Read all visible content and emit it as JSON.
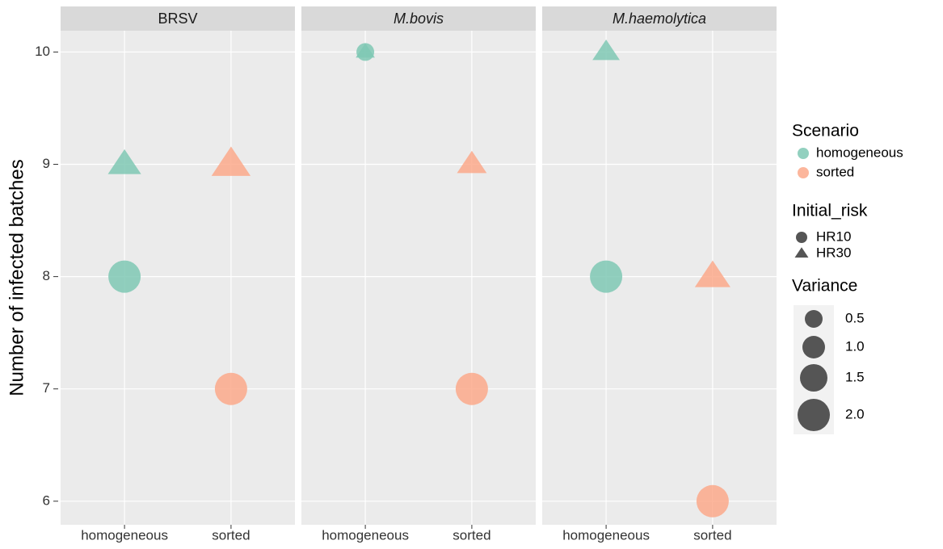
{
  "chart_data": {
    "type": "scatter",
    "y_label": "Number of infected batches",
    "categories": [
      "homogeneous",
      "sorted"
    ],
    "ylim": [
      5.79,
      10.19
    ],
    "yticks": [
      6,
      7,
      8,
      9,
      10
    ],
    "grid": true,
    "facets": [
      {
        "title": "BRSV",
        "italic": false,
        "points": [
          {
            "x": "homogeneous",
            "risk": "HR30",
            "value": 9,
            "variance": 1.5
          },
          {
            "x": "homogeneous",
            "risk": "HR10",
            "value": 8,
            "variance": 2.0
          },
          {
            "x": "sorted",
            "risk": "HR30",
            "value": 9,
            "variance": 2.0
          },
          {
            "x": "sorted",
            "risk": "HR10",
            "value": 7,
            "variance": 2.0
          }
        ]
      },
      {
        "title": "M.bovis",
        "italic": true,
        "points": [
          {
            "x": "homogeneous",
            "risk": "HR10",
            "value": 10,
            "variance": 0.5
          },
          {
            "x": "homogeneous",
            "risk": "HR30",
            "value": 10,
            "variance": 0.3
          },
          {
            "x": "sorted",
            "risk": "HR30",
            "value": 9,
            "variance": 1.2
          },
          {
            "x": "sorted",
            "risk": "HR10",
            "value": 7,
            "variance": 2.0
          }
        ]
      },
      {
        "title": "M.haemolytica",
        "italic": true,
        "points": [
          {
            "x": "homogeneous",
            "risk": "HR30",
            "value": 10,
            "variance": 1.0
          },
          {
            "x": "homogeneous",
            "risk": "HR10",
            "value": 8,
            "variance": 2.0
          },
          {
            "x": "sorted",
            "risk": "HR30",
            "value": 8,
            "variance": 1.7
          },
          {
            "x": "sorted",
            "risk": "HR10",
            "value": 6,
            "variance": 2.0
          }
        ]
      }
    ],
    "scenario_legend": {
      "title": "Scenario",
      "entries": [
        {
          "label": "homogeneous",
          "color": "#7fc8b4"
        },
        {
          "label": "sorted",
          "color": "#fca98b"
        }
      ]
    },
    "risk_legend": {
      "title": "Initial_risk",
      "entries": [
        {
          "label": "HR10",
          "shape": "circle"
        },
        {
          "label": "HR30",
          "shape": "triangle"
        }
      ]
    },
    "size_legend": {
      "title": "Variance",
      "breaks": [
        0.5,
        {
          "value": 1,
          "label": "1.0"
        },
        1.5,
        {
          "value": 2,
          "label": "2.0"
        }
      ]
    }
  }
}
